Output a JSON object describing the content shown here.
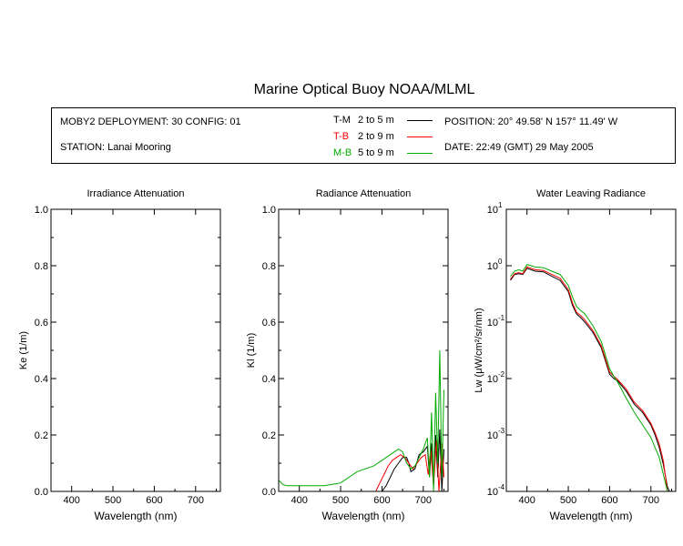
{
  "title": "Marine Optical Buoy NOAA/MLML",
  "info": {
    "deployment": "MOBY2 DEPLOYMENT: 30 CONFIG: 01",
    "station": "STATION: Lanai Mooring",
    "position": "POSITION: 20° 49.58' N   157° 11.49' W",
    "date": "DATE: 22:49 (GMT) 29 May 2005",
    "legend": [
      {
        "code": "T-M",
        "range": "2 to 5  m",
        "color": "#000000"
      },
      {
        "code": "T-B",
        "range": "2 to 9  m",
        "color": "#ff0000"
      },
      {
        "code": "M-B",
        "range": "5 to 9  m",
        "color": "#00aa00"
      }
    ]
  },
  "chart_data": [
    {
      "type": "line",
      "title": "Irradiance Attenuation",
      "xlabel": "Wavelength (nm)",
      "ylabel": "Ke  (1/m)",
      "xlim": [
        350,
        760
      ],
      "ylim": [
        0,
        1.0
      ],
      "xticks": [
        "400",
        "500",
        "600",
        "700"
      ],
      "yticks": [
        "0.0",
        "0.2",
        "0.4",
        "0.6",
        "0.8",
        "1.0"
      ],
      "series": []
    },
    {
      "type": "line",
      "title": "Radiance Attenuation",
      "xlabel": "Wavelength (nm)",
      "ylabel": "Kl  (1/m)",
      "xlim": [
        350,
        760
      ],
      "ylim": [
        0,
        1.0
      ],
      "xticks": [
        "400",
        "500",
        "600",
        "700"
      ],
      "yticks": [
        "0.0",
        "0.2",
        "0.4",
        "0.6",
        "0.8",
        "1.0"
      ],
      "series": [
        {
          "name": "T-M",
          "color": "#000000",
          "x": [
            600,
            610,
            620,
            630,
            640,
            650,
            660,
            665,
            670,
            680,
            690,
            700,
            710,
            715,
            720,
            725,
            730,
            735,
            740,
            745,
            750
          ],
          "y": [
            0.0,
            0.02,
            0.05,
            0.08,
            0.1,
            0.12,
            0.12,
            0.1,
            0.07,
            0.08,
            0.13,
            0.14,
            0.16,
            0.05,
            0.17,
            0.02,
            0.2,
            0.05,
            0.22,
            0.0,
            0.15
          ]
        },
        {
          "name": "T-B",
          "color": "#ff0000",
          "x": [
            585,
            595,
            605,
            615,
            625,
            635,
            645,
            655,
            665,
            675,
            685,
            695,
            705,
            712,
            718,
            725,
            732,
            738,
            745,
            750
          ],
          "y": [
            0.0,
            0.03,
            0.06,
            0.09,
            0.11,
            0.12,
            0.13,
            0.12,
            0.1,
            0.08,
            0.1,
            0.12,
            0.13,
            0.06,
            0.15,
            0.02,
            0.18,
            0.0,
            0.17,
            0.05
          ]
        },
        {
          "name": "M-B",
          "color": "#00aa00",
          "x": [
            350,
            360,
            370,
            380,
            400,
            420,
            440,
            460,
            480,
            500,
            520,
            540,
            560,
            580,
            600,
            620,
            640,
            650,
            660,
            670,
            680,
            690,
            700,
            710,
            715,
            720,
            725,
            730,
            735,
            740,
            745,
            750
          ],
          "y": [
            0.04,
            0.025,
            0.02,
            0.02,
            0.02,
            0.02,
            0.02,
            0.02,
            0.025,
            0.03,
            0.05,
            0.07,
            0.08,
            0.09,
            0.11,
            0.13,
            0.15,
            0.14,
            0.1,
            0.08,
            0.09,
            0.12,
            0.15,
            0.19,
            0.05,
            0.28,
            0.0,
            0.35,
            0.1,
            0.5,
            0.05,
            0.36
          ]
        }
      ]
    },
    {
      "type": "line",
      "title": "Water Leaving Radiance",
      "xlabel": "Wavelength (nm)",
      "ylabel": "Lw  (μW/cm²/sr/nm)",
      "xlim": [
        350,
        760
      ],
      "yscale": "log",
      "ylim": [
        0.0001,
        10
      ],
      "xticks": [
        "400",
        "500",
        "600",
        "700"
      ],
      "ytick_bases": [
        "10",
        "10",
        "10",
        "10",
        "10",
        "10"
      ],
      "ytick_exps": [
        "-4",
        "-3",
        "-2",
        "-1",
        "0",
        "1"
      ],
      "series": [
        {
          "name": "T-M",
          "color": "#000000",
          "x": [
            360,
            370,
            380,
            390,
            400,
            410,
            420,
            440,
            460,
            480,
            500,
            510,
            520,
            530,
            540,
            560,
            580,
            600,
            610,
            620,
            640,
            660,
            680,
            700,
            710,
            720,
            730,
            740,
            745
          ],
          "y": [
            0.55,
            0.7,
            0.72,
            0.7,
            0.9,
            0.85,
            0.8,
            0.78,
            0.65,
            0.55,
            0.35,
            0.2,
            0.14,
            0.12,
            0.1,
            0.065,
            0.035,
            0.012,
            0.01,
            0.009,
            0.006,
            0.0035,
            0.0025,
            0.0015,
            0.001,
            0.0006,
            0.0003,
            0.00012,
            0.0001
          ]
        },
        {
          "name": "T-B",
          "color": "#ff0000",
          "x": [
            360,
            370,
            380,
            390,
            400,
            410,
            420,
            440,
            460,
            480,
            500,
            510,
            520,
            530,
            540,
            560,
            580,
            600,
            610,
            620,
            640,
            660,
            680,
            700,
            710,
            720,
            730,
            740
          ],
          "y": [
            0.58,
            0.72,
            0.75,
            0.72,
            0.95,
            0.9,
            0.85,
            0.82,
            0.7,
            0.6,
            0.38,
            0.22,
            0.15,
            0.13,
            0.11,
            0.07,
            0.038,
            0.013,
            0.011,
            0.0095,
            0.0065,
            0.0038,
            0.0027,
            0.0016,
            0.0011,
            0.0007,
            0.00035,
            0.0001
          ]
        },
        {
          "name": "M-B",
          "color": "#00aa00",
          "x": [
            360,
            370,
            380,
            390,
            400,
            410,
            420,
            440,
            460,
            480,
            500,
            510,
            520,
            530,
            540,
            560,
            580,
            600,
            610,
            620,
            640,
            660,
            680,
            700,
            710,
            720,
            730,
            740
          ],
          "y": [
            0.65,
            0.8,
            0.85,
            0.8,
            1.05,
            1.0,
            0.95,
            0.92,
            0.8,
            0.7,
            0.45,
            0.28,
            0.19,
            0.16,
            0.14,
            0.085,
            0.045,
            0.015,
            0.011,
            0.0085,
            0.0045,
            0.0025,
            0.0015,
            0.0009,
            0.0006,
            0.0004,
            0.0002,
            0.0001
          ]
        }
      ]
    }
  ]
}
